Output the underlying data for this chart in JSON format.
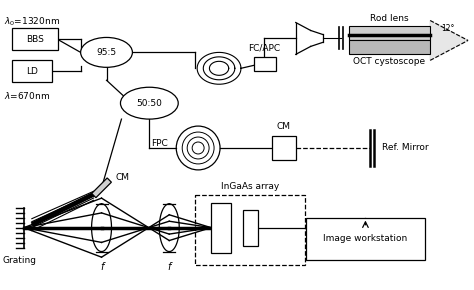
{
  "fig_width": 4.74,
  "fig_height": 2.9,
  "dpi": 100,
  "bg_color": "#ffffff",
  "lambda0_text": "$\\lambda_0$=1320nm",
  "lambda_text": "$\\lambda$=670nm",
  "BBS_label": "BBS",
  "LD_label": "LD",
  "splitter95_label": "95:5",
  "splitter50_label": "50:50",
  "FPC_label": "FPC",
  "CM_label": "CM",
  "FCAPC_label": "FC/APC",
  "RefMirror_label": "Ref. Mirror",
  "InGaAs_label": "InGaAs array",
  "Workstation_label": "Image workstation",
  "Grating_label": "Grating",
  "RodLens_label": "Rod lens",
  "OCT_label": "OCT cystoscope",
  "angle_label": "12°",
  "f_label": "f"
}
